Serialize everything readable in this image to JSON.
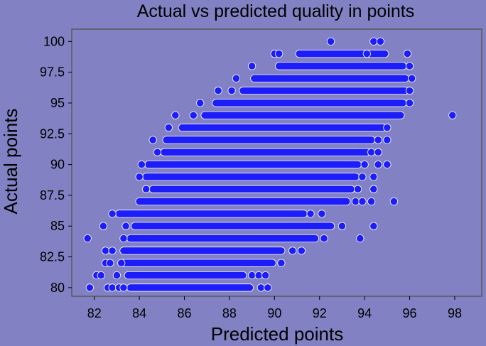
{
  "colors": {
    "background": "#8181c3",
    "plot_border": "#5a5a5a",
    "marker_fill": "#1d1dfa",
    "marker_edge": "#ffffff",
    "text": "#000000"
  },
  "chart_data": {
    "type": "scatter",
    "title": "Actual vs predicted quality in points",
    "xlabel": "Predicted points",
    "ylabel": "Actual points",
    "xlim": [
      81,
      99.2
    ],
    "ylim": [
      79.3,
      101
    ],
    "xticks": [
      "82",
      "84",
      "86",
      "88",
      "90",
      "92",
      "94",
      "96",
      "98"
    ],
    "yticks": [
      "80",
      "82.5",
      "85",
      "87.5",
      "90",
      "92.5",
      "95",
      "97.5",
      "100"
    ],
    "grid": false,
    "legend": "none",
    "series": [
      {
        "color": "#1d1dfa",
        "points": [
          [
            81.8,
            80
          ],
          [
            82.6,
            80
          ],
          [
            82.8,
            80
          ],
          [
            83.1,
            80
          ],
          [
            83.3,
            80
          ],
          [
            89.4,
            80
          ],
          [
            89.7,
            80
          ],
          [
            82.1,
            81
          ],
          [
            82.3,
            81
          ],
          [
            83.0,
            81
          ],
          [
            89.0,
            81
          ],
          [
            89.3,
            81
          ],
          [
            89.6,
            81
          ],
          [
            82.5,
            82
          ],
          [
            82.7,
            82
          ],
          [
            83.2,
            82
          ],
          [
            90.3,
            82
          ],
          [
            82.5,
            83
          ],
          [
            82.8,
            83
          ],
          [
            90.8,
            83
          ],
          [
            91.2,
            83
          ],
          [
            81.7,
            84
          ],
          [
            83.3,
            84
          ],
          [
            92.2,
            84
          ],
          [
            93.8,
            84
          ],
          [
            82.4,
            85
          ],
          [
            83.4,
            85
          ],
          [
            93.0,
            85
          ],
          [
            94.4,
            85
          ],
          [
            82.8,
            86
          ],
          [
            91.6,
            86
          ],
          [
            92.1,
            86
          ],
          [
            93.6,
            87
          ],
          [
            93.9,
            87
          ],
          [
            94.3,
            87
          ],
          [
            95.3,
            87
          ],
          [
            84.3,
            88
          ],
          [
            93.7,
            88
          ],
          [
            94.4,
            88
          ],
          [
            84.0,
            89
          ],
          [
            93.9,
            89
          ],
          [
            94.4,
            89
          ],
          [
            84.1,
            90
          ],
          [
            94.0,
            90
          ],
          [
            94.6,
            90
          ],
          [
            95.0,
            90
          ],
          [
            84.8,
            91
          ],
          [
            94.3,
            91
          ],
          [
            94.6,
            91
          ],
          [
            84.6,
            92
          ],
          [
            94.6,
            92
          ],
          [
            95.0,
            92
          ],
          [
            85.3,
            93
          ],
          [
            95.0,
            93
          ],
          [
            85.6,
            94
          ],
          [
            86.4,
            94
          ],
          [
            97.9,
            94
          ],
          [
            86.7,
            95
          ],
          [
            96.0,
            95
          ],
          [
            87.5,
            96
          ],
          [
            88.1,
            96
          ],
          [
            96.0,
            96
          ],
          [
            88.3,
            97
          ],
          [
            96.1,
            97
          ],
          [
            89.0,
            98
          ],
          [
            96.0,
            98
          ],
          [
            90.0,
            99
          ],
          [
            90.2,
            99
          ],
          [
            94.1,
            99
          ],
          [
            95.9,
            99
          ],
          [
            92.5,
            100
          ],
          [
            94.4,
            100
          ],
          [
            94.7,
            100
          ]
        ],
        "horizontal_runs": [
          {
            "y": 80,
            "x_from": 83.6,
            "x_to": 88.9
          },
          {
            "y": 81,
            "x_from": 83.5,
            "x_to": 88.6
          },
          {
            "y": 82,
            "x_from": 83.3,
            "x_to": 89.9
          },
          {
            "y": 83,
            "x_from": 83.3,
            "x_to": 90.3
          },
          {
            "y": 84,
            "x_from": 83.6,
            "x_to": 91.8
          },
          {
            "y": 85,
            "x_from": 83.8,
            "x_to": 92.5
          },
          {
            "y": 86,
            "x_from": 83.1,
            "x_to": 91.3
          },
          {
            "y": 87,
            "x_from": 84.0,
            "x_to": 93.2
          },
          {
            "y": 88,
            "x_from": 84.6,
            "x_to": 93.4
          },
          {
            "y": 89,
            "x_from": 84.3,
            "x_to": 93.6
          },
          {
            "y": 90,
            "x_from": 84.4,
            "x_to": 93.7
          },
          {
            "y": 91,
            "x_from": 85.1,
            "x_to": 94.1
          },
          {
            "y": 92,
            "x_from": 85.2,
            "x_to": 94.3
          },
          {
            "y": 93,
            "x_from": 85.9,
            "x_to": 94.8
          },
          {
            "y": 94,
            "x_from": 86.9,
            "x_to": 95.6
          },
          {
            "y": 95,
            "x_from": 87.4,
            "x_to": 95.7
          },
          {
            "y": 96,
            "x_from": 88.6,
            "x_to": 95.8
          },
          {
            "y": 97,
            "x_from": 89.1,
            "x_to": 95.8
          },
          {
            "y": 98,
            "x_from": 90.2,
            "x_to": 95.7
          },
          {
            "y": 99,
            "x_from": 91.1,
            "x_to": 94.9
          }
        ]
      }
    ]
  }
}
